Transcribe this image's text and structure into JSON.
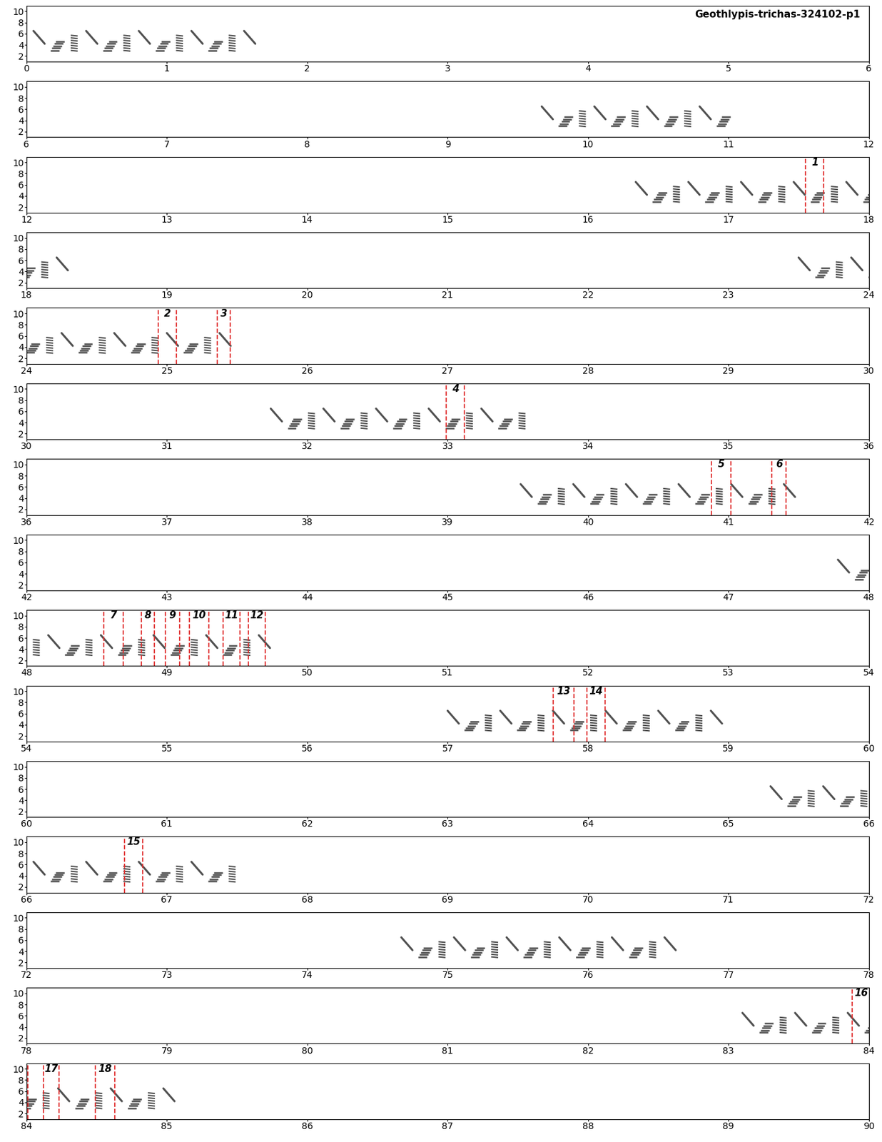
{
  "chart_data": {
    "type": "spectrogram",
    "title": "Geothlypis-trichas-324102-p1",
    "ylim": [
      1,
      11
    ],
    "yticks": [
      2,
      4,
      6,
      8,
      10
    ],
    "panels": [
      {
        "xlim": [
          0,
          6
        ],
        "xticks": [
          0,
          1,
          2,
          3,
          4,
          5,
          6
        ]
      },
      {
        "xlim": [
          6,
          12
        ],
        "xticks": [
          6,
          7,
          8,
          9,
          10,
          11,
          12
        ]
      },
      {
        "xlim": [
          12,
          18
        ],
        "xticks": [
          12,
          13,
          14,
          15,
          16,
          17,
          18
        ]
      },
      {
        "xlim": [
          18,
          24
        ],
        "xticks": [
          18,
          19,
          20,
          21,
          22,
          23,
          24
        ]
      },
      {
        "xlim": [
          24,
          30
        ],
        "xticks": [
          24,
          25,
          26,
          27,
          28,
          29,
          30
        ]
      },
      {
        "xlim": [
          30,
          36
        ],
        "xticks": [
          30,
          31,
          32,
          33,
          34,
          35,
          36
        ]
      },
      {
        "xlim": [
          36,
          42
        ],
        "xticks": [
          36,
          37,
          38,
          39,
          40,
          41,
          42
        ]
      },
      {
        "xlim": [
          42,
          48
        ],
        "xticks": [
          42,
          43,
          44,
          45,
          46,
          47,
          48
        ]
      },
      {
        "xlim": [
          48,
          54
        ],
        "xticks": [
          48,
          49,
          50,
          51,
          52,
          53,
          54
        ]
      },
      {
        "xlim": [
          54,
          60
        ],
        "xticks": [
          54,
          55,
          56,
          57,
          58,
          59,
          60
        ]
      },
      {
        "xlim": [
          60,
          66
        ],
        "xticks": [
          60,
          61,
          62,
          63,
          64,
          65,
          66
        ]
      },
      {
        "xlim": [
          66,
          72
        ],
        "xticks": [
          66,
          67,
          68,
          69,
          70,
          71,
          72
        ]
      },
      {
        "xlim": [
          72,
          78
        ],
        "xticks": [
          72,
          73,
          74,
          75,
          76,
          77,
          78
        ]
      },
      {
        "xlim": [
          78,
          84
        ],
        "xticks": [
          78,
          79,
          80,
          81,
          82,
          83,
          84
        ]
      },
      {
        "xlim": [
          84,
          90
        ],
        "xticks": [
          84,
          85,
          86,
          87,
          88,
          89,
          90
        ]
      }
    ],
    "songs": [
      {
        "start": 0.05,
        "end": 1.6
      },
      {
        "start": 9.67,
        "end": 11.03
      },
      {
        "start": 16.34,
        "end": 18.3
      },
      {
        "start": 23.5,
        "end": 25.48
      },
      {
        "start": 31.74,
        "end": 33.55
      },
      {
        "start": 39.52,
        "end": 41.42
      },
      {
        "start": 47.78,
        "end": 49.7
      },
      {
        "start": 57.0,
        "end": 58.93
      },
      {
        "start": 65.3,
        "end": 67.46
      },
      {
        "start": 74.67,
        "end": 76.65
      },
      {
        "start": 83.1,
        "end": 85.0
      }
    ],
    "color": "#505050",
    "segments": [
      {
        "label": "1",
        "start": 17.55,
        "end": 17.68
      },
      {
        "label": "2",
        "start": 24.94,
        "end": 25.07
      },
      {
        "label": "3",
        "start": 25.36,
        "end": 25.45
      },
      {
        "label": "4",
        "start": 32.99,
        "end": 33.12
      },
      {
        "label": "5",
        "start": 40.88,
        "end": 41.02
      },
      {
        "label": "6",
        "start": 41.31,
        "end": 41.41
      },
      {
        "label": "7",
        "start": 48.55,
        "end": 48.69
      },
      {
        "label": "8",
        "start": 48.82,
        "end": 48.91
      },
      {
        "label": "9",
        "start": 48.99,
        "end": 49.09
      },
      {
        "label": "10",
        "start": 49.16,
        "end": 49.3
      },
      {
        "label": "11",
        "start": 49.4,
        "end": 49.52
      },
      {
        "label": "12",
        "start": 49.58,
        "end": 49.7
      },
      {
        "label": "13",
        "start": 57.75,
        "end": 57.9
      },
      {
        "label": "14",
        "start": 57.99,
        "end": 58.12
      },
      {
        "label": "15",
        "start": 66.7,
        "end": 66.83
      },
      {
        "label": "16",
        "start": 83.88,
        "end": 84.01
      },
      {
        "label": "17",
        "start": 84.12,
        "end": 84.23
      },
      {
        "label": "18",
        "start": 84.49,
        "end": 84.63
      }
    ],
    "segment_color": "#e03030"
  }
}
